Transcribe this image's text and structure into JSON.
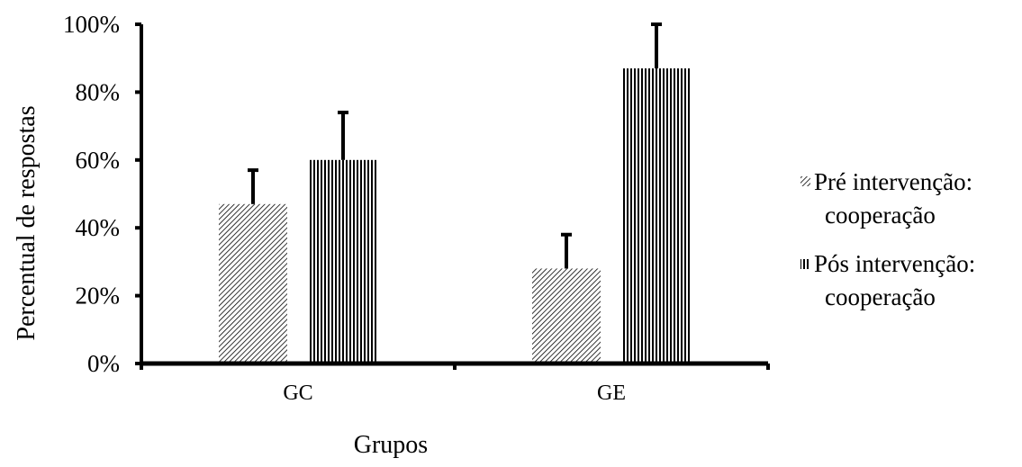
{
  "chart_data": {
    "type": "bar",
    "categories": [
      "GC",
      "GE"
    ],
    "series": [
      {
        "name": "Pré intervenção: cooperação",
        "values": [
          47,
          28
        ],
        "error": [
          10,
          10
        ],
        "pattern": "diagonal-hatch"
      },
      {
        "name": "Pós intervenção: cooperação",
        "values": [
          60,
          87
        ],
        "error": [
          14,
          13
        ],
        "pattern": "vertical-hatch"
      }
    ],
    "title": "",
    "xlabel": "Grupos",
    "ylabel": "Percentual de respostas",
    "ylim": [
      0,
      100
    ],
    "yticks": [
      "0%",
      "20%",
      "40%",
      "60%",
      "80%",
      "100%"
    ],
    "unit": "%",
    "grid": false,
    "legend_position": "right"
  },
  "legend": {
    "items": [
      {
        "line1": "Pré intervenção:",
        "line2": "cooperação"
      },
      {
        "line1": "Pós intervenção:",
        "line2": "cooperação"
      }
    ]
  },
  "colors": {
    "ink": "#000000",
    "background": "#ffffff"
  }
}
